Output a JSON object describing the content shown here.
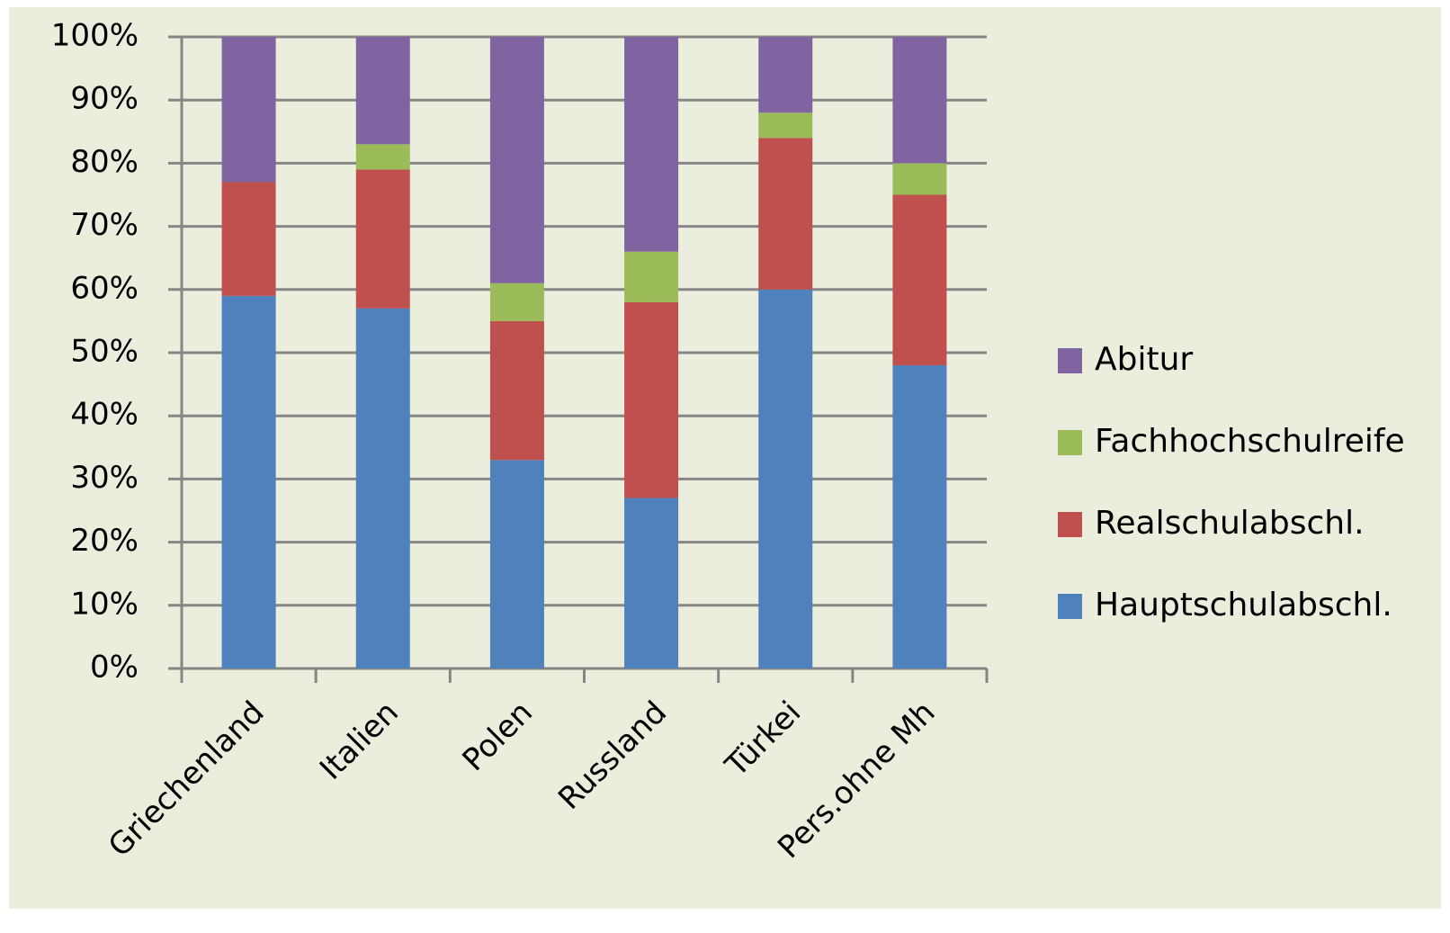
{
  "chart_data": {
    "type": "stacked_bar",
    "categories": [
      "Griechenland",
      "Italien",
      "Polen",
      "Russland",
      "Türkei",
      "Pers.ohne Mh"
    ],
    "series": [
      {
        "name": "Hauptschulabschl.",
        "color": "#4f81bd",
        "values": [
          59,
          57,
          33,
          27,
          60,
          48
        ]
      },
      {
        "name": "Realschulabschl.",
        "color": "#c0504d",
        "values": [
          18,
          22,
          22,
          31,
          24,
          27
        ]
      },
      {
        "name": "Fachhochschulreife",
        "color": "#9bbb59",
        "values": [
          0,
          4,
          6,
          8,
          4,
          5
        ]
      },
      {
        "name": "Abitur",
        "color": "#8064a2",
        "values": [
          23,
          17,
          39,
          34,
          12,
          20
        ]
      }
    ],
    "ylim": [
      0,
      100
    ],
    "yticks": [
      {
        "value": 0,
        "label": "0%"
      },
      {
        "value": 10,
        "label": "10%"
      },
      {
        "value": 20,
        "label": "20%"
      },
      {
        "value": 30,
        "label": "30%"
      },
      {
        "value": 40,
        "label": "40%"
      },
      {
        "value": 50,
        "label": "50%"
      },
      {
        "value": 60,
        "label": "60%"
      },
      {
        "value": 70,
        "label": "70%"
      },
      {
        "value": 80,
        "label": "80%"
      },
      {
        "value": 90,
        "label": "90%"
      },
      {
        "value": 100,
        "label": "100%"
      }
    ],
    "grid": true,
    "legend": "right"
  }
}
